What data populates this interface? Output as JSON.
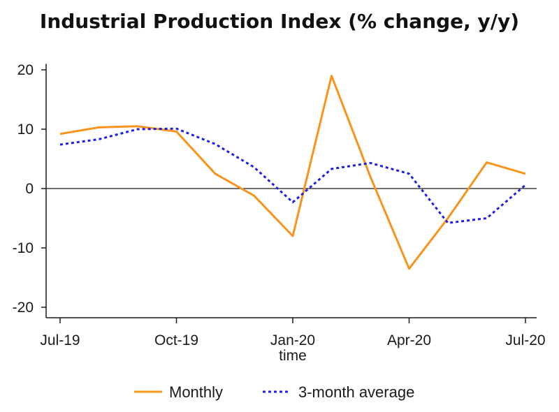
{
  "chart_data": {
    "type": "line",
    "title": "Industrial Production Index (% change, y/y)",
    "xlabel": "time",
    "ylabel": "",
    "categories": [
      "Jul-19",
      "Aug-19",
      "Sep-19",
      "Oct-19",
      "Nov-19",
      "Dec-19",
      "Jan-20",
      "Feb-20",
      "Mar-20",
      "Apr-20",
      "May-20",
      "Jun-20",
      "Jul-20"
    ],
    "x_tick_labels": [
      "Jul-19",
      "Oct-19",
      "Jan-20",
      "Apr-20",
      "Jul-20"
    ],
    "y_ticks": [
      -20,
      -10,
      0,
      10,
      20
    ],
    "ylim": [
      -21,
      21
    ],
    "grid": false,
    "zero_line": true,
    "legend_position": "bottom",
    "series": [
      {
        "name": "Monthly",
        "color": "#F7941D",
        "style": "solid",
        "values": [
          9.2,
          10.3,
          10.5,
          9.6,
          2.5,
          -1.2,
          -8.0,
          19.0,
          2.0,
          -13.5,
          -5.0,
          4.4,
          2.5
        ]
      },
      {
        "name": "3-month average",
        "color": "#1F1FE0",
        "style": "dotted",
        "values": [
          7.4,
          8.3,
          10.0,
          10.1,
          7.5,
          3.6,
          -2.3,
          3.3,
          4.3,
          2.5,
          -5.8,
          -5.0,
          0.6
        ]
      }
    ]
  }
}
